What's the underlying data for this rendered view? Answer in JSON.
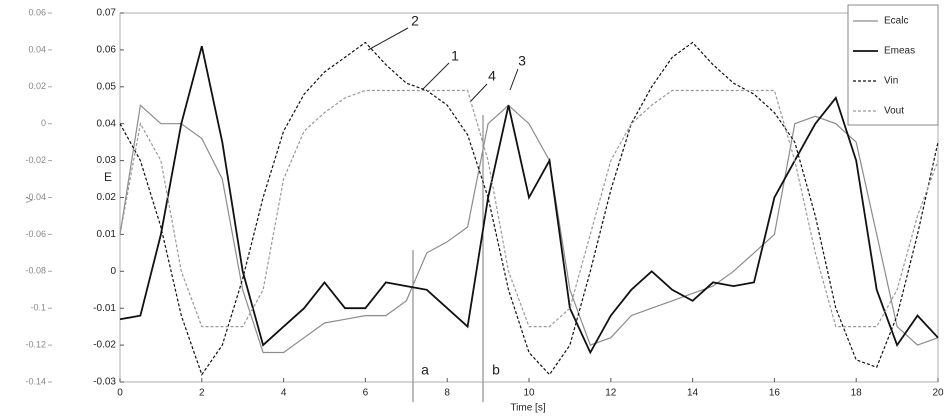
{
  "chart_data": {
    "type": "line",
    "x_label": "Time [s]",
    "y_label": "E",
    "y2_label": "V",
    "xlim": [
      0,
      20
    ],
    "xticks": [
      0,
      2,
      4,
      6,
      8,
      10,
      12,
      14,
      16,
      18,
      20
    ],
    "ylim": [
      -0.03,
      0.07
    ],
    "yticks": [
      -0.03,
      -0.02,
      -0.01,
      0,
      0.01,
      0.02,
      0.03,
      0.04,
      0.05,
      0.06,
      0.07
    ],
    "y2lim": [
      -0.14,
      0.06
    ],
    "y2ticks": [
      -0.14,
      -0.12,
      -0.1,
      -0.08,
      -0.06,
      -0.04,
      -0.02,
      0,
      0.02,
      0.04,
      0.06
    ],
    "legend": "top-right",
    "annotations": [
      "2",
      "1",
      "4",
      "3",
      "a",
      "b"
    ],
    "x": [
      0,
      0.5,
      1,
      1.5,
      2,
      2.5,
      3,
      3.5,
      4,
      4.5,
      5,
      5.5,
      6,
      6.5,
      7,
      7.5,
      8,
      8.5,
      9,
      9.5,
      10,
      10.5,
      11,
      11.5,
      12,
      12.5,
      13,
      13.5,
      14,
      14.5,
      15,
      15.5,
      16,
      16.5,
      17,
      17.5,
      18,
      18.5,
      19,
      19.5,
      20
    ],
    "series": [
      {
        "name": "Ecalc",
        "color": "#8c8c8c",
        "dash": "solid",
        "width": 1.2,
        "values": [
          0.01,
          0.045,
          0.04,
          0.04,
          0.036,
          0.025,
          -0.005,
          -0.022,
          -0.022,
          -0.018,
          -0.014,
          -0.013,
          -0.012,
          -0.012,
          -0.008,
          0.005,
          0.008,
          0.012,
          0.04,
          0.045,
          0.04,
          0.03,
          -0.005,
          -0.02,
          -0.018,
          -0.012,
          -0.01,
          -0.008,
          -0.006,
          -0.004,
          0,
          0.005,
          0.01,
          0.04,
          0.042,
          0.04,
          0.035,
          0.01,
          -0.015,
          -0.02,
          -0.018
        ]
      },
      {
        "name": "Emeas",
        "color": "#111111",
        "dash": "solid",
        "width": 1.8,
        "values": [
          -0.013,
          -0.012,
          0.01,
          0.04,
          0.061,
          0.035,
          0,
          -0.02,
          -0.015,
          -0.01,
          -0.003,
          -0.01,
          -0.01,
          -0.003,
          -0.004,
          -0.005,
          -0.01,
          -0.015,
          0.02,
          0.045,
          0.02,
          0.03,
          -0.01,
          -0.022,
          -0.012,
          -0.005,
          0,
          -0.005,
          -0.008,
          -0.003,
          -0.004,
          -0.003,
          0.02,
          0.03,
          0.04,
          0.047,
          0.03,
          -0.005,
          -0.02,
          -0.012,
          -0.018
        ]
      },
      {
        "name": "Vin",
        "color": "#111111",
        "dash": "dashed",
        "width": 1.2,
        "axis": "y2",
        "values": [
          0,
          -0.02,
          -0.056,
          -0.104,
          -0.136,
          -0.12,
          -0.084,
          -0.04,
          -0.004,
          0.016,
          0.028,
          0.036,
          0.044,
          0.032,
          0.022,
          0.018,
          0.01,
          -0.006,
          -0.04,
          -0.09,
          -0.124,
          -0.136,
          -0.12,
          -0.08,
          -0.036,
          0,
          0.02,
          0.036,
          0.044,
          0.032,
          0.022,
          0.016,
          0.006,
          -0.01,
          -0.05,
          -0.1,
          -0.128,
          -0.132,
          -0.104,
          -0.06,
          -0.01
        ]
      },
      {
        "name": "Vout",
        "color": "#999999",
        "dash": "dashed",
        "width": 1.2,
        "axis": "y2",
        "values": [
          -0.06,
          0,
          -0.02,
          -0.08,
          -0.11,
          -0.11,
          -0.11,
          -0.09,
          -0.03,
          -0.004,
          0.006,
          0.014,
          0.018,
          0.018,
          0.018,
          0.018,
          0.018,
          0.018,
          -0.02,
          -0.08,
          -0.11,
          -0.11,
          -0.1,
          -0.06,
          -0.02,
          0,
          0.01,
          0.018,
          0.018,
          0.018,
          0.018,
          0.018,
          0.018,
          -0.02,
          -0.07,
          -0.11,
          -0.11,
          -0.11,
          -0.09,
          -0.05,
          -0.02
        ]
      }
    ]
  }
}
